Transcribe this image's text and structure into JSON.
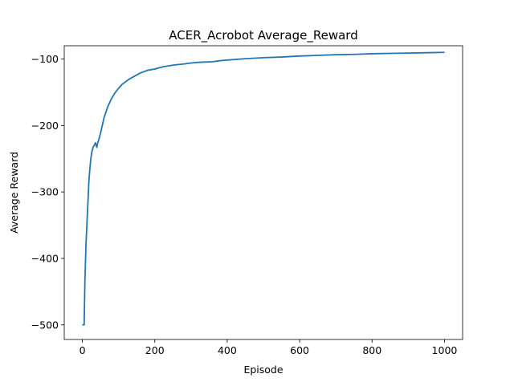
{
  "chart_data": {
    "type": "line",
    "title": "ACER_Acrobot Average_Reward",
    "xlabel": "Episode",
    "ylabel": "Average Reward",
    "xlim": [
      -50,
      1050
    ],
    "ylim": [
      -522,
      -80
    ],
    "xticks": [
      0,
      200,
      400,
      600,
      800,
      1000
    ],
    "yticks": [
      -500,
      -400,
      -300,
      -200,
      -100
    ],
    "xtick_labels": [
      "0",
      "200",
      "400",
      "600",
      "800",
      "1000"
    ],
    "ytick_labels": [
      "−500",
      "−400",
      "−300",
      "−200",
      "−100"
    ],
    "grid": false,
    "colors": {
      "line": "#1f77b4"
    },
    "series": [
      {
        "x": [
          0,
          5,
          7,
          10,
          12,
          15,
          18,
          20,
          23,
          26,
          30,
          33,
          36,
          38,
          40,
          42,
          45,
          50,
          55,
          60,
          65,
          70,
          80,
          90,
          100,
          110,
          120,
          130,
          140,
          150,
          160,
          170,
          180,
          190,
          200,
          220,
          240,
          260,
          280,
          300,
          320,
          340,
          360,
          380,
          400,
          450,
          500,
          550,
          600,
          650,
          700,
          750,
          800,
          850,
          900,
          950,
          1000
        ],
        "y": [
          -500,
          -500,
          -435,
          -380,
          -355,
          -320,
          -285,
          -270,
          -252,
          -240,
          -232,
          -230,
          -226,
          -229,
          -233,
          -227,
          -222,
          -212,
          -200,
          -188,
          -180,
          -172,
          -160,
          -151,
          -144,
          -138,
          -134,
          -130,
          -127,
          -124,
          -121,
          -119,
          -117,
          -116,
          -115,
          -112,
          -110,
          -108.5,
          -107.5,
          -106,
          -105,
          -104.5,
          -104,
          -102.5,
          -101.5,
          -99.5,
          -98,
          -97,
          -95.5,
          -94.5,
          -93.5,
          -93,
          -92,
          -91.5,
          -91,
          -90.5,
          -90
        ]
      }
    ]
  }
}
